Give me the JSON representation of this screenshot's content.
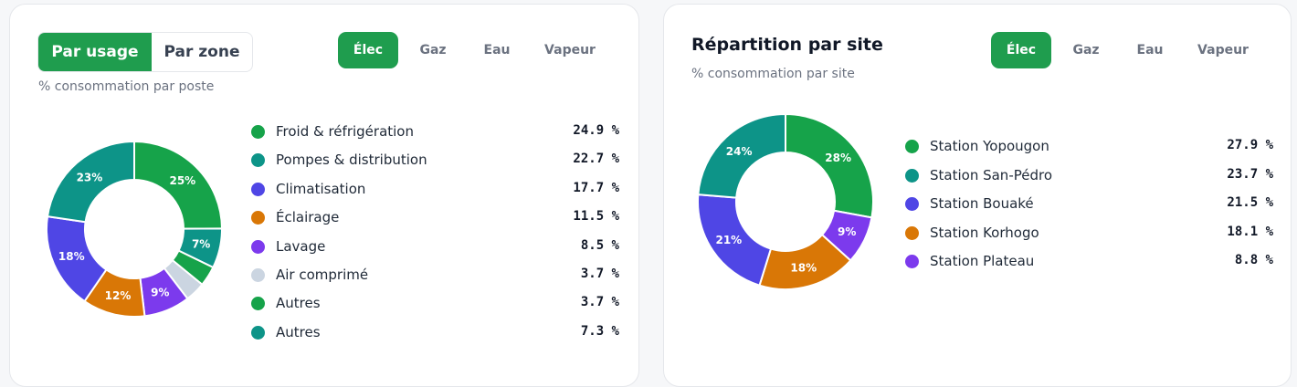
{
  "left_card": {
    "view_toggle": {
      "by_usage": "Par usage",
      "by_zone": "Par zone",
      "active": "by_usage"
    },
    "energy_tabs": [
      "Élec",
      "Gaz",
      "Eau",
      "Vapeur"
    ],
    "active_energy": "Élec",
    "subtitle": "% consommation par poste"
  },
  "right_card": {
    "title": "Répartition par site",
    "energy_tabs": [
      "Élec",
      "Gaz",
      "Eau",
      "Vapeur"
    ],
    "active_energy": "Élec",
    "subtitle": "% consommation par site"
  },
  "chart_data": [
    {
      "type": "pie",
      "variant": "donut",
      "slices": [
        {
          "label": "Froid & réfrigération",
          "value": 24.9,
          "display": "24.9 %",
          "slice_label": "25%",
          "color": "#16a34a"
        },
        {
          "label": "Pompes & distribution",
          "value": 22.7,
          "display": "22.7 %",
          "slice_label": "23%",
          "color": "#0d9488"
        },
        {
          "label": "Climatisation",
          "value": 17.7,
          "display": "17.7 %",
          "slice_label": "18%",
          "color": "#4f46e5"
        },
        {
          "label": "Éclairage",
          "value": 11.5,
          "display": "11.5 %",
          "slice_label": "12%",
          "color": "#d97706"
        },
        {
          "label": "Lavage",
          "value": 8.5,
          "display": "8.5 %",
          "slice_label": "9%",
          "color": "#7c3aed"
        },
        {
          "label": "Air comprimé",
          "value": 3.7,
          "display": "3.7 %",
          "slice_label": "",
          "color": "#cbd5e1"
        },
        {
          "label": "Autres",
          "value": 3.7,
          "display": "3.7 %",
          "slice_label": "",
          "color": "#16a34a"
        },
        {
          "label": "Autres",
          "value": 7.3,
          "display": "7.3 %",
          "slice_label": "7%",
          "color": "#0d9488"
        }
      ],
      "order_clockwise_from_top": [
        0,
        7,
        6,
        5,
        4,
        3,
        2,
        1
      ]
    },
    {
      "type": "pie",
      "variant": "donut",
      "slices": [
        {
          "label": "Station Yopougon",
          "value": 27.9,
          "display": "27.9 %",
          "slice_label": "28%",
          "color": "#16a34a"
        },
        {
          "label": "Station San-Pédro",
          "value": 23.7,
          "display": "23.7 %",
          "slice_label": "24%",
          "color": "#0d9488"
        },
        {
          "label": "Station Bouaké",
          "value": 21.5,
          "display": "21.5 %",
          "slice_label": "21%",
          "color": "#4f46e5"
        },
        {
          "label": "Station Korhogo",
          "value": 18.1,
          "display": "18.1 %",
          "slice_label": "18%",
          "color": "#d97706"
        },
        {
          "label": "Station Plateau",
          "value": 8.8,
          "display": "8.8 %",
          "slice_label": "9%",
          "color": "#7c3aed"
        }
      ],
      "order_clockwise_from_top": [
        0,
        4,
        3,
        2,
        1
      ]
    }
  ]
}
